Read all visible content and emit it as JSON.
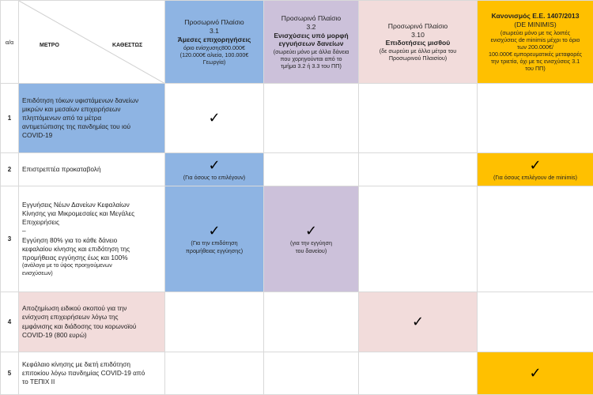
{
  "header": {
    "aa": "α/α",
    "metro": "ΜΕΤΡΟ",
    "katheston": "ΚΑΘΕΣΤΩΣ",
    "col31": {
      "line1": "Προσωρινό Πλαίσιο",
      "line2": "3.1",
      "line3": "Άμεσες επιχορηγήσεις",
      "line4": "όριο ενίσχυσης800.000€",
      "line5": "(120.000€ αλιεία, 100.000€",
      "line6": "Γεωργία)"
    },
    "col32": {
      "line1": "Προσωρινό Πλαίσιο",
      "line2": "3.2",
      "line3": "Ενισχύσεις υπό μορφή",
      "line4": "εγγυήσεων δανείων",
      "line5": "(σωρεύει μόνο με άλλα δάνεια",
      "line6": "που χορηγούνται από το",
      "line7": "τμήμα 3.2 ή 3.3 του ΠΠ)"
    },
    "col310": {
      "line1": "Προσωρινό Πλαίσιο",
      "line2": "3.10",
      "line3": "Επιδοτήσεις μισθού",
      "line4": "(δε σωρεύει με άλλα μέτρα του",
      "line5": "Προσωρινού Πλαισίου)"
    },
    "colDm": {
      "line1": "Κανονισμός Ε.Ε. 1407/2013",
      "line2": "(DE MINIMIS)",
      "line3": "(σωρεύει μόνο με τις λοιπές",
      "line4": "ενισχύσεις de minimis μέχρι το όριο",
      "line5": "των 200.000€/",
      "line6": "100.000€ εμπορευματικές μεταφορές",
      "line7": "την τριετία, όχι με τις ενισχύσεις 3.1",
      "line8": "του ΠΠ)"
    }
  },
  "check_symbol": "✓",
  "rows": [
    {
      "num": "1",
      "line1": "Επιδότηση τόκων υφιστάμενων δανείων",
      "line2": "μικρών και μεσαίων επιχειρήσεων",
      "line3": "πληττόμενων από τα μέτρα",
      "line4": "αντιμετώπισης της πανδημίας του ιού",
      "line5": "COVID-19"
    },
    {
      "num": "2",
      "line1": "Επιστρεπτέα προκαταβολή",
      "note31": "(Για όσους το επιλέγουν)",
      "noteDm": "(Για όσους επιλέγουν de minimis)"
    },
    {
      "num": "3",
      "line1": "Εγγυήσεις Νέων Δανείων Κεφαλαίων",
      "line2": "Κίνησης για Μικρομεσαίες και Μεγάλες",
      "line3": "Επιχειρήσεις",
      "line4": "–",
      "line5": "Εγγύηση 80% για το κάθε δάνειο",
      "line6": "κεφαλαίου κίνησης και επιδότηση της",
      "line7": "προμήθειας εγγύησης έως και 100%",
      "line8": "(ανάλογα με το ύψος προηγούμενων",
      "line9": "ενισχύσεων)",
      "note31a": "(Για την επιδότηση",
      "note31b": "προμήθειας εγγύησης)",
      "note32a": "(για την εγγύηση",
      "note32b": "του δανείου)"
    },
    {
      "num": "4",
      "line1": "Αποζημίωση ειδικού σκοπού για την",
      "line2": "ενίσχυση επιχειρήσεων λόγω της",
      "line3": "εμφάνισης και διάδοσης του κορωνοϊού",
      "line4": "COVID-19 (800 ευρώ)"
    },
    {
      "num": "5",
      "line1": "Κεφάλαιο κίνησης με διετή επιδότηση",
      "line2": "επιτοκίου λόγω πανδημίας COVID-19 από",
      "line3": "το ΤΕΠΙΧ ΙΙ"
    }
  ]
}
